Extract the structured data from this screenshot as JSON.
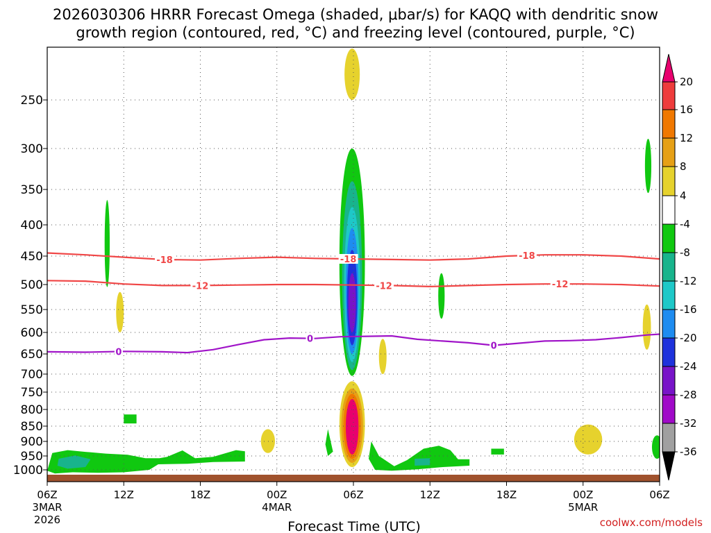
{
  "chart_data": {
    "type": "time-height contour",
    "title_line1": "2026030306 HRRR Forecast Omega (shaded, μbar/s) for KAQQ with dendritic snow",
    "title_line2": "growth region (contoured, red, °C) and freezing level (contoured, purple, °C)",
    "xlabel": "Forecast Time (UTC)",
    "credit": "coolwx.com/models",
    "y_axis": {
      "unit": "hPa",
      "ticks": [
        "250",
        "300",
        "350",
        "400",
        "450",
        "500",
        "550",
        "600",
        "650",
        "700",
        "750",
        "800",
        "850",
        "900",
        "950",
        "1000"
      ],
      "values": [
        250,
        300,
        350,
        400,
        450,
        500,
        550,
        600,
        650,
        700,
        750,
        800,
        850,
        900,
        950,
        1000
      ],
      "range": [
        200,
        1030
      ]
    },
    "x_axis": {
      "unit": "forecast hour",
      "range": [
        0,
        48
      ],
      "ticks": [
        {
          "hour": 0,
          "label": "06Z",
          "date": "3MAR",
          "year": "2026"
        },
        {
          "hour": 6,
          "label": "12Z"
        },
        {
          "hour": 12,
          "label": "18Z"
        },
        {
          "hour": 18,
          "label": "00Z",
          "date": "4MAR"
        },
        {
          "hour": 24,
          "label": "06Z"
        },
        {
          "hour": 30,
          "label": "12Z"
        },
        {
          "hour": 36,
          "label": "18Z"
        },
        {
          "hour": 42,
          "label": "00Z",
          "date": "5MAR"
        },
        {
          "hour": 48,
          "label": "06Z"
        }
      ]
    },
    "colorbar": {
      "labels": [
        "20",
        "16",
        "12",
        "8",
        "4",
        "-4",
        "-8",
        "-12",
        "-16",
        "-20",
        "-24",
        "-28",
        "-32",
        "-36"
      ],
      "levels": [
        20,
        16,
        12,
        8,
        4,
        -4,
        -8,
        -12,
        -16,
        -20,
        -24,
        -28,
        -32,
        -36
      ],
      "colors": [
        "#e8006e",
        "#ee3c3c",
        "#f07800",
        "#e6a016",
        "#e6d22d",
        "#ffffff",
        "#10c810",
        "#18b48c",
        "#1ec8c8",
        "#1e8cf0",
        "#1e32dc",
        "#7814c8",
        "#a00ac8",
        "#a0a0a0",
        "#000000"
      ]
    },
    "contours": [
      {
        "name": "dgz-top",
        "label": "-18",
        "color": "#f04646",
        "labels_at_hours": [
          9.2,
          23.6,
          37.6
        ],
        "points": [
          [
            0,
            445
          ],
          [
            3,
            448
          ],
          [
            6,
            452
          ],
          [
            9,
            456
          ],
          [
            12,
            457
          ],
          [
            15,
            454
          ],
          [
            18,
            452
          ],
          [
            21,
            454
          ],
          [
            24,
            455
          ],
          [
            27,
            456
          ],
          [
            30,
            457
          ],
          [
            33,
            455
          ],
          [
            36,
            450
          ],
          [
            39,
            448
          ],
          [
            42,
            448
          ],
          [
            45,
            450
          ],
          [
            48,
            455
          ]
        ]
      },
      {
        "name": "dgz-bottom",
        "label": "-12",
        "color": "#f04646",
        "labels_at_hours": [
          12.0,
          26.4,
          40.2
        ],
        "points": [
          [
            0,
            493
          ],
          [
            3,
            494
          ],
          [
            6,
            499
          ],
          [
            9,
            502
          ],
          [
            12,
            502
          ],
          [
            15,
            501
          ],
          [
            18,
            500
          ],
          [
            21,
            500
          ],
          [
            24,
            501
          ],
          [
            27,
            502
          ],
          [
            30,
            504
          ],
          [
            33,
            502
          ],
          [
            36,
            500
          ],
          [
            39,
            499
          ],
          [
            42,
            499
          ],
          [
            45,
            500
          ],
          [
            48,
            503
          ]
        ]
      },
      {
        "name": "freezing-level",
        "label": "0",
        "color": "#a014c8",
        "labels_at_hours": [
          5.6,
          20.6,
          35.0
        ],
        "points": [
          [
            0,
            645
          ],
          [
            3,
            646
          ],
          [
            6,
            644
          ],
          [
            9,
            645
          ],
          [
            11,
            647
          ],
          [
            13,
            640
          ],
          [
            15,
            628
          ],
          [
            17,
            617
          ],
          [
            19,
            613
          ],
          [
            21,
            614
          ],
          [
            23,
            610
          ],
          [
            25,
            609
          ],
          [
            27,
            608
          ],
          [
            29,
            616
          ],
          [
            31,
            620
          ],
          [
            33,
            624
          ],
          [
            35,
            630
          ],
          [
            37,
            625
          ],
          [
            39,
            620
          ],
          [
            41,
            619
          ],
          [
            43,
            617
          ],
          [
            45,
            612
          ],
          [
            47,
            606
          ],
          [
            48,
            604
          ]
        ]
      }
    ],
    "shaded_blobs": [
      {
        "desc": "ascent column",
        "hour": 23.9,
        "half_width": 1.0,
        "top": 300,
        "bottom": 705,
        "value": -8
      },
      {
        "desc": "ascent column inner",
        "hour": 23.9,
        "half_width": 0.78,
        "top": 340,
        "bottom": 690,
        "value": -12
      },
      {
        "desc": "ascent column inner",
        "hour": 23.9,
        "half_width": 0.62,
        "top": 375,
        "bottom": 670,
        "value": -16
      },
      {
        "desc": "ascent column inner",
        "hour": 23.9,
        "half_width": 0.5,
        "top": 405,
        "bottom": 650,
        "value": -20
      },
      {
        "desc": "ascent column core",
        "hour": 23.9,
        "half_width": 0.4,
        "top": 440,
        "bottom": 630,
        "value": -24
      },
      {
        "desc": "ascent column core",
        "hour": 23.9,
        "half_width": 0.3,
        "top": 480,
        "bottom": 600,
        "value": -28
      },
      {
        "desc": "descent low",
        "hour": 23.9,
        "half_width": 1.0,
        "top": 720,
        "bottom": 990,
        "value": 4
      },
      {
        "desc": "descent low inner",
        "hour": 23.9,
        "half_width": 0.85,
        "top": 740,
        "bottom": 975,
        "value": 8
      },
      {
        "desc": "descent low inner",
        "hour": 23.9,
        "half_width": 0.68,
        "top": 755,
        "bottom": 960,
        "value": 12
      },
      {
        "desc": "descent low core",
        "hour": 23.9,
        "half_width": 0.5,
        "top": 770,
        "bottom": 945,
        "value": 20
      },
      {
        "desc": "descent top",
        "hour": 23.9,
        "half_width": 0.6,
        "top": 200,
        "bottom": 250,
        "value": 4
      },
      {
        "desc": "small ascent",
        "hour": 4.7,
        "half_width": 0.2,
        "top": 365,
        "bottom": 505,
        "value": -8
      },
      {
        "desc": "small descent",
        "hour": 5.7,
        "half_width": 0.3,
        "top": 515,
        "bottom": 600,
        "value": 4
      },
      {
        "desc": "small descent",
        "hour": 26.3,
        "half_width": 0.3,
        "top": 615,
        "bottom": 700,
        "value": 4
      },
      {
        "desc": "small ascent",
        "hour": 30.9,
        "half_width": 0.25,
        "top": 480,
        "bottom": 570,
        "value": -8
      },
      {
        "desc": "small descent",
        "hour": 17.3,
        "half_width": 0.55,
        "top": 860,
        "bottom": 940,
        "value": 4
      },
      {
        "desc": "small ascent",
        "hour": 47.1,
        "half_width": 0.25,
        "top": 290,
        "bottom": 355,
        "value": -8
      },
      {
        "desc": "small descent",
        "hour": 47.0,
        "half_width": 0.32,
        "top": 540,
        "bottom": 640,
        "value": 4
      },
      {
        "desc": "low descent",
        "hour": 42.4,
        "half_width": 1.1,
        "top": 845,
        "bottom": 945,
        "value": 4
      },
      {
        "desc": "low ascent",
        "hour": 47.8,
        "half_width": 0.4,
        "top": 880,
        "bottom": 960,
        "value": -8
      }
    ],
    "shaded_rects": [
      {
        "desc": "low ascent",
        "h0": 6.0,
        "h1": 7.0,
        "p0": 815,
        "p1": 842,
        "value": -8
      },
      {
        "desc": "low ascent",
        "h0": 34.8,
        "h1": 35.8,
        "p0": 925,
        "p1": 945,
        "value": -8
      }
    ],
    "shaded_polys": [
      {
        "desc": "boundary-layer ascent left",
        "value": -8,
        "points": [
          [
            0.0,
            1003
          ],
          [
            0.4,
            940
          ],
          [
            1.6,
            930
          ],
          [
            3.0,
            936
          ],
          [
            4.6,
            942
          ],
          [
            6.3,
            946
          ],
          [
            7.7,
            958
          ],
          [
            8.8,
            958
          ],
          [
            9.4,
            953
          ],
          [
            10.6,
            931
          ],
          [
            11.6,
            958
          ],
          [
            13.0,
            953
          ],
          [
            14.8,
            930
          ],
          [
            15.5,
            934
          ],
          [
            15.5,
            970
          ],
          [
            13.0,
            972
          ],
          [
            11.0,
            978
          ],
          [
            8.7,
            980
          ],
          [
            8.0,
            1000
          ],
          [
            6.0,
            1008
          ],
          [
            4.0,
            1010
          ],
          [
            2.0,
            1008
          ],
          [
            0.6,
            1012
          ]
        ]
      },
      {
        "desc": "boundary-layer ascent left inner",
        "value": -12,
        "points": [
          [
            0.9,
            960
          ],
          [
            2.2,
            948
          ],
          [
            3.4,
            962
          ],
          [
            3.0,
            990
          ],
          [
            1.6,
            996
          ],
          [
            0.8,
            985
          ]
        ]
      },
      {
        "desc": "boundary-layer ascent right",
        "value": -8,
        "points": [
          [
            25.4,
            900
          ],
          [
            26.0,
            950
          ],
          [
            27.2,
            987
          ],
          [
            28.2,
            965
          ],
          [
            29.5,
            925
          ],
          [
            30.7,
            915
          ],
          [
            31.6,
            930
          ],
          [
            32.2,
            962
          ],
          [
            33.1,
            962
          ],
          [
            33.1,
            985
          ],
          [
            31.0,
            990
          ],
          [
            29.0,
            998
          ],
          [
            27.0,
            1003
          ],
          [
            25.7,
            1000
          ],
          [
            25.2,
            960
          ]
        ]
      },
      {
        "desc": "boundary-layer ascent right inner",
        "value": -12,
        "points": [
          [
            28.8,
            960
          ],
          [
            30.0,
            958
          ],
          [
            30.0,
            983
          ],
          [
            28.8,
            985
          ]
        ]
      },
      {
        "desc": "tiny ascent",
        "value": -8,
        "points": [
          [
            22.0,
            860
          ],
          [
            22.4,
            935
          ],
          [
            22.0,
            950
          ],
          [
            21.8,
            910
          ]
        ]
      },
      {
        "desc": "terrain band",
        "value": -8,
        "points": []
      }
    ]
  }
}
